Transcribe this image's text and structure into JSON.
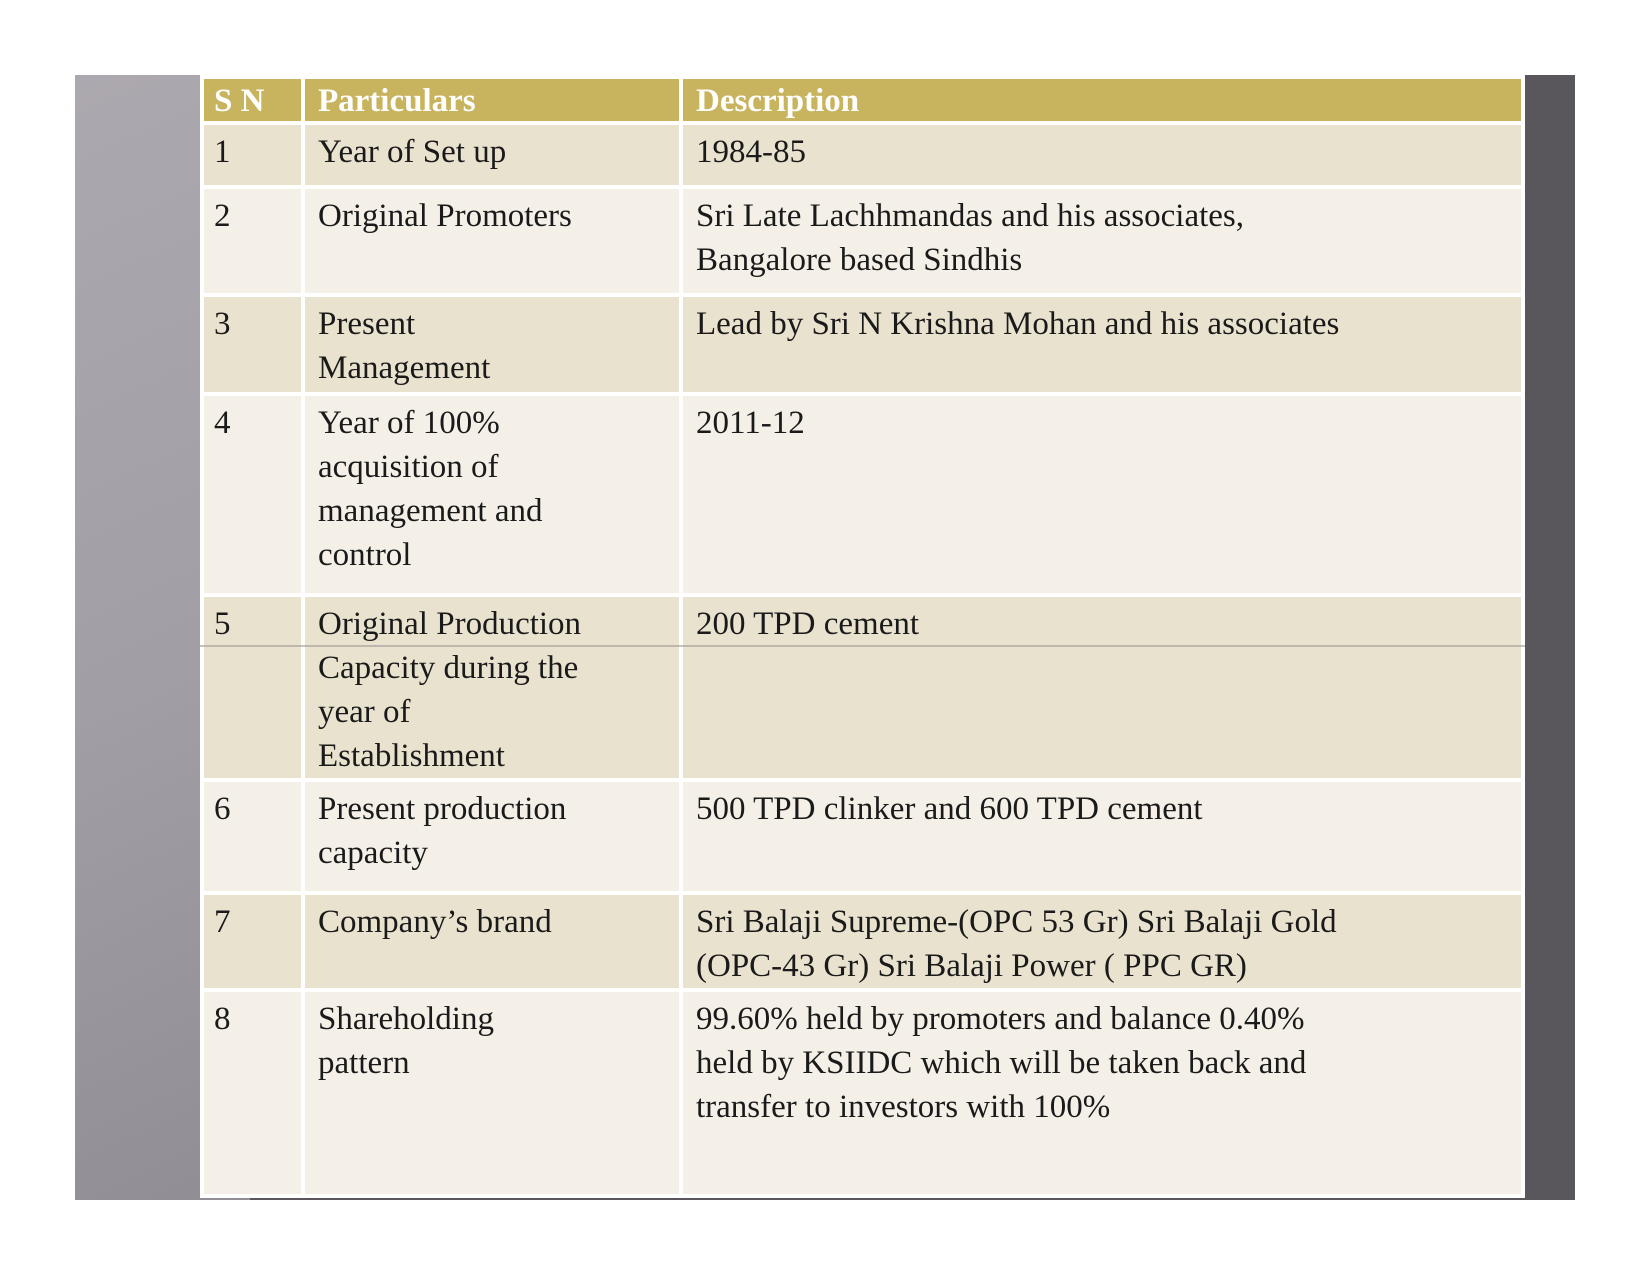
{
  "table": {
    "columns": [
      "S N",
      "Particulars",
      "Description"
    ],
    "rows": [
      {
        "sn": "1",
        "particulars": "Year of Set up",
        "description": "1984-85"
      },
      {
        "sn": "2",
        "particulars": "Original Promoters",
        "description": "Sri Late Lachhmandas and his associates,\nBangalore based Sindhis"
      },
      {
        "sn": "3",
        "particulars": "Present\nManagement",
        "description": "Lead by Sri N Krishna Mohan and his associates"
      },
      {
        "sn": "4",
        "particulars": "Year of 100%\nacquisition of\nmanagement and\ncontrol",
        "description": "2011-12"
      },
      {
        "sn": "5",
        "particulars": "Original Production\nCapacity during the\nyear of\nEstablishment",
        "description": "200 TPD cement"
      },
      {
        "sn": "6",
        "particulars": "Present production\ncapacity",
        "description": "500 TPD clinker and 600 TPD cement"
      },
      {
        "sn": "7",
        "particulars": "Company’s brand",
        "description": "Sri Balaji Supreme-(OPC 53 Gr) Sri Balaji Gold\n(OPC-43 Gr) Sri Balaji Power ( PPC GR)"
      },
      {
        "sn": "8",
        "particulars": "Shareholding\npattern",
        "description": "99.60% held by promoters and balance 0.40%\nheld by KSIIDC which will be taken back and\ntransfer to investors with 100%"
      }
    ]
  },
  "colors": {
    "header_bg": "#C8B45E",
    "header_text": "#FFFFFF",
    "row_dark": "#E9E2CE",
    "row_light": "#F4F0E7",
    "body_text": "#1A1A1A",
    "slide_bg_top": "#ACA8AF",
    "slide_bg_bottom": "#7B787E",
    "shadow": "#59565C"
  }
}
